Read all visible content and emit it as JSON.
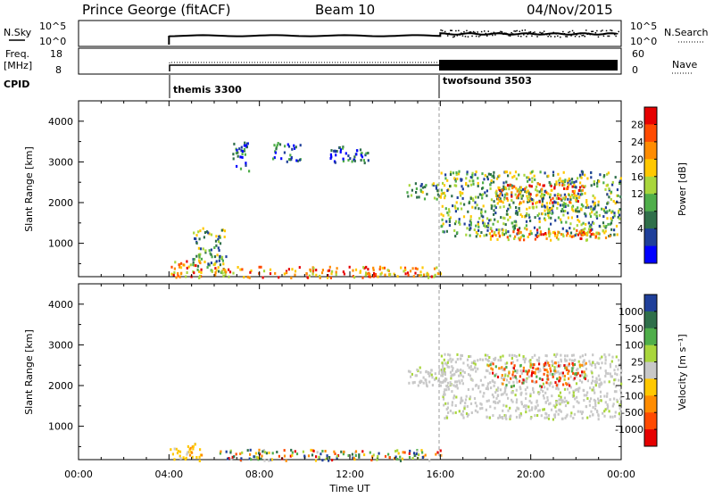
{
  "header": {
    "title": "Prince George (fitACF)",
    "beam": "Beam 10",
    "date": "04/Nov/2015"
  },
  "top_panels": {
    "nsky_label": "N.Sky",
    "nsky_ticks": [
      "10^5",
      "10^0"
    ],
    "nsearch_label": "N.Search",
    "nsearch_ticks": [
      "10^5",
      "10^0"
    ],
    "freq_label": "Freq.",
    "freq_unit": "[MHz]",
    "freq_ticks": [
      "18",
      "8"
    ],
    "nave_label": "Nave",
    "nave_ticks": [
      "60",
      "0"
    ],
    "cpid_label": "CPID",
    "cpid_segments": [
      {
        "name": "themis 3300",
        "start_hour": 4,
        "end_hour": 16
      },
      {
        "name": "twofsound 3503",
        "start_hour": 16,
        "end_hour": 24
      }
    ]
  },
  "axes": {
    "x_ticks": [
      "00:00",
      "04:00",
      "08:00",
      "12:00",
      "16:00",
      "20:00",
      "00:00"
    ],
    "x_label": "Time UT",
    "y_label": "Slant Range [km]",
    "y_ticks": [
      "4000",
      "3000",
      "2000",
      "1000"
    ]
  },
  "power_colorbar": {
    "label": "Power [dB]",
    "ticks": [
      "28",
      "24",
      "20",
      "16",
      "12",
      "8",
      "4"
    ],
    "colors": [
      "#e60000",
      "#ff4a00",
      "#ff8c00",
      "#ffc800",
      "#a9d63c",
      "#4fae4a",
      "#2f6f4a",
      "#1f3f9a",
      "#0000ff"
    ]
  },
  "velocity_colorbar": {
    "label": "Velocity [m s⁻¹]",
    "ticks": [
      "1000",
      "500",
      "100",
      "25",
      "-25",
      "-100",
      "-500",
      "-1000"
    ],
    "colors": [
      "#1f3f9a",
      "#2f6f4a",
      "#4fae4a",
      "#a9d63c",
      "#c8c8c8",
      "#ffc800",
      "#ff8c00",
      "#ff4a00",
      "#e60000"
    ]
  },
  "chart_data": [
    {
      "type": "heatmap",
      "title": "Power",
      "xlabel": "Time UT",
      "ylabel": "Slant Range [km]",
      "xlim_hours": [
        0,
        24
      ],
      "ylim": [
        180,
        4500
      ],
      "regions": [
        {
          "t": [
            4.0,
            5.5
          ],
          "r": [
            180,
            600
          ],
          "level": "high"
        },
        {
          "t": [
            5.0,
            6.5
          ],
          "r": [
            300,
            1400
          ],
          "level": "mid"
        },
        {
          "t": [
            6.0,
            16.0
          ],
          "r": [
            180,
            450
          ],
          "level": "high"
        },
        {
          "t": [
            6.8,
            7.5
          ],
          "r": [
            2800,
            3500
          ],
          "level": "low"
        },
        {
          "t": [
            8.5,
            9.8
          ],
          "r": [
            3000,
            3500
          ],
          "level": "low"
        },
        {
          "t": [
            11.0,
            12.8
          ],
          "r": [
            3000,
            3400
          ],
          "level": "low"
        },
        {
          "t": [
            14.5,
            16.0
          ],
          "r": [
            2100,
            2500
          ],
          "level": "mid"
        },
        {
          "t": [
            16.0,
            24.0
          ],
          "r": [
            1200,
            2800
          ],
          "level": "mid"
        },
        {
          "t": [
            18.0,
            23.5
          ],
          "r": [
            1100,
            1400
          ],
          "level": "high"
        },
        {
          "t": [
            18.5,
            22.5
          ],
          "r": [
            2000,
            2500
          ],
          "level": "high"
        }
      ]
    },
    {
      "type": "heatmap",
      "title": "Velocity",
      "xlabel": "Time UT",
      "ylabel": "Slant Range [km]",
      "xlim_hours": [
        0,
        24
      ],
      "ylim": [
        180,
        4500
      ],
      "regions": [
        {
          "t": [
            4.0,
            5.5
          ],
          "r": [
            180,
            600
          ],
          "level": "toward-low"
        },
        {
          "t": [
            6.0,
            16.0
          ],
          "r": [
            180,
            450
          ],
          "level": "mixed"
        },
        {
          "t": [
            14.5,
            17.0
          ],
          "r": [
            2000,
            2500
          ],
          "level": "ground"
        },
        {
          "t": [
            16.0,
            24.0
          ],
          "r": [
            1200,
            2800
          ],
          "level": "ground"
        },
        {
          "t": [
            18.0,
            22.5
          ],
          "r": [
            2000,
            2600
          ],
          "level": "away-high"
        }
      ]
    }
  ]
}
